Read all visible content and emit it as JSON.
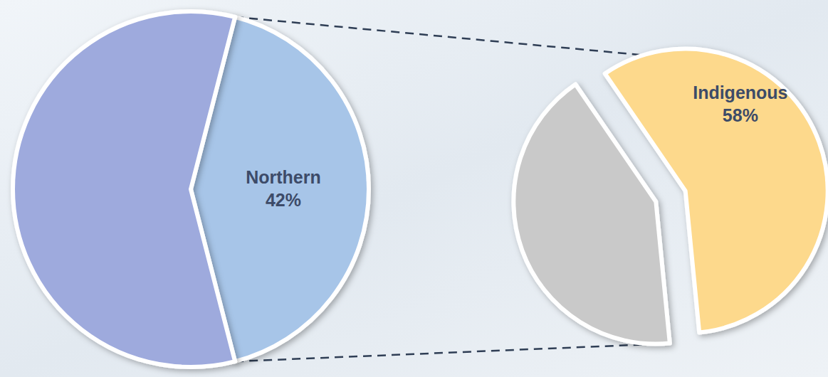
{
  "chart_data": [
    {
      "type": "pie",
      "categories": [
        "Northern",
        null
      ],
      "values": [
        42,
        58
      ],
      "value_labels": [
        "42%",
        null
      ],
      "colors": [
        "#a7c5e8",
        "#9eaadd"
      ],
      "data_labels": true
    },
    {
      "type": "pie",
      "categories": [
        "Indigenous",
        null
      ],
      "values": [
        58,
        42
      ],
      "value_labels": [
        "58%",
        null
      ],
      "colors": [
        "#fdd98c",
        "#c9c9c9"
      ],
      "data_labels": true
    }
  ]
}
